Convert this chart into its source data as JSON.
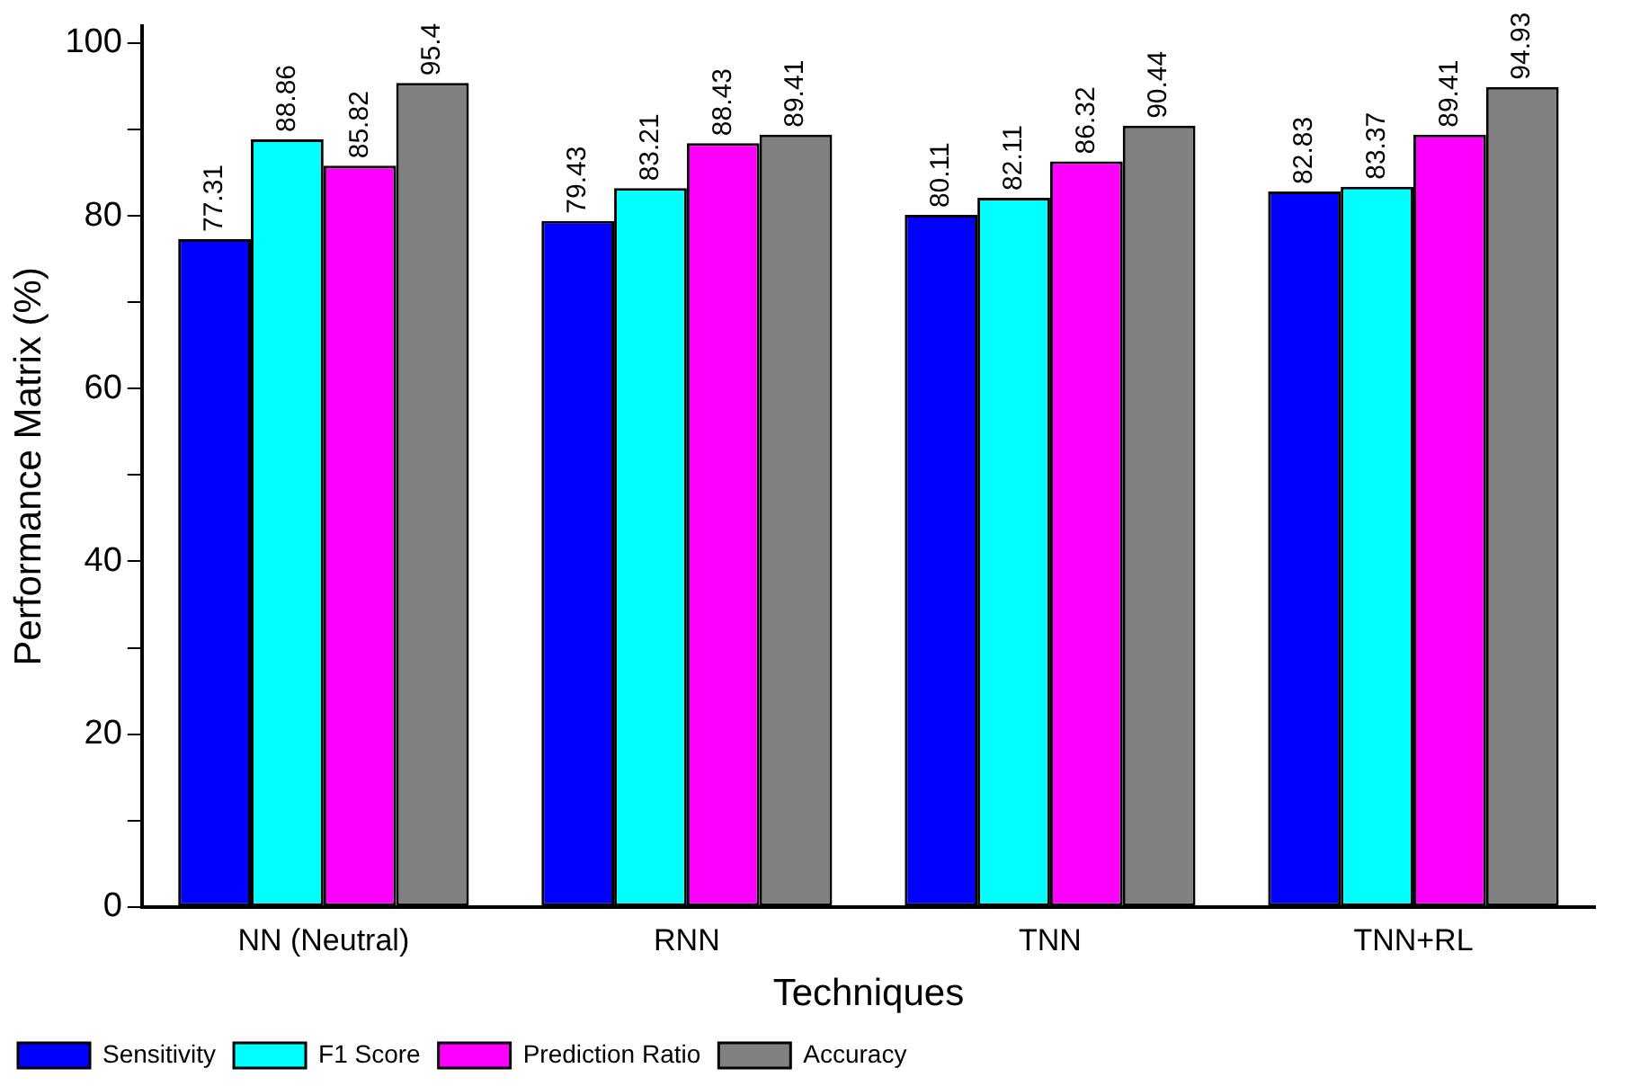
{
  "chart_data": {
    "type": "bar",
    "xlabel": "Techniques",
    "ylabel": "Performance Matrix (%)",
    "categories": [
      "NN (Neutral)",
      "RNN",
      "TNN",
      "TNN+RL"
    ],
    "series": [
      {
        "name": "Sensitivity",
        "color": "#0000ff",
        "values": [
          77.31,
          79.43,
          80.11,
          82.83
        ]
      },
      {
        "name": "F1 Score",
        "color": "#00ffff",
        "values": [
          88.86,
          83.21,
          82.11,
          83.37
        ]
      },
      {
        "name": "Prediction Ratio",
        "color": "#ff00ff",
        "values": [
          85.82,
          88.43,
          86.32,
          89.41
        ]
      },
      {
        "name": "Accuracy",
        "color": "#808080",
        "values": [
          95.4,
          89.41,
          90.44,
          94.93
        ]
      }
    ],
    "ylim": [
      0,
      102
    ],
    "yticks": [
      0,
      {
        "value": 10,
        "label": null
      },
      20,
      {
        "value": 30,
        "label": null
      },
      40,
      {
        "value": 50,
        "label": null
      },
      60,
      {
        "value": 70,
        "label": null
      },
      80,
      {
        "value": 90,
        "label": null
      },
      100
    ],
    "grid": false,
    "legend": "bottom left",
    "data_labels": true
  }
}
